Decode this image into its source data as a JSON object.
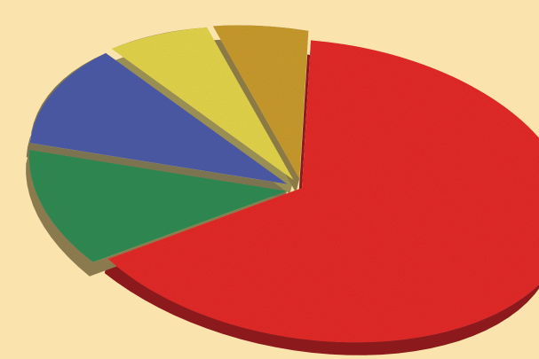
{
  "chart_data": {
    "type": "pie",
    "style": "3d-exploded",
    "background": "#fbe3ad",
    "slices": [
      {
        "value": 63,
        "color": "#e22a27",
        "side": "#8c1a1c"
      },
      {
        "value": 12,
        "color": "#2f8a52",
        "side": "#8a7a4e"
      },
      {
        "value": 12,
        "color": "#4c5aa6",
        "side": "#7c7450"
      },
      {
        "value": 7,
        "color": "#e2d34a",
        "side": "#9a8f52"
      },
      {
        "value": 6,
        "color": "#c79a2c",
        "side": "#8c7a44"
      }
    ]
  }
}
